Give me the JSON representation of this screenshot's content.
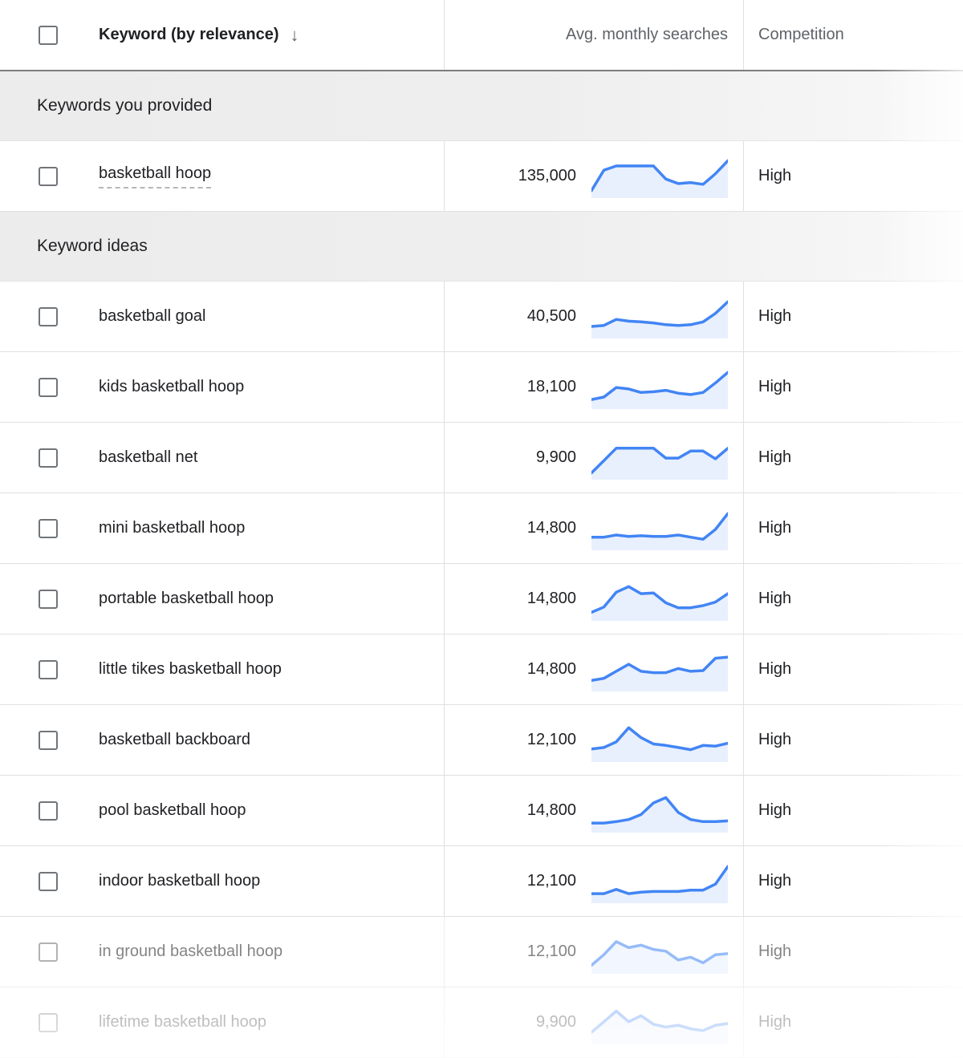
{
  "colors": {
    "sparkline_line": "#4285f4",
    "sparkline_fill": "#e8f0fe"
  },
  "table": {
    "header": {
      "keyword": "Keyword (by relevance)",
      "sort_icon_glyph": "↓",
      "searches": "Avg. monthly searches",
      "competition": "Competition"
    },
    "sections": [
      {
        "label": "Keywords you provided",
        "rows": [
          {
            "keyword": "basketball hoop",
            "searches": "135,000",
            "competition": "High",
            "dashed": true,
            "opacity": 1,
            "trend": [
              0.12,
              0.7,
              0.82,
              0.82,
              0.82,
              0.82,
              0.45,
              0.32,
              0.35,
              0.3,
              0.6,
              0.97
            ]
          }
        ]
      },
      {
        "label": "Keyword ideas",
        "rows": [
          {
            "keyword": "basketball goal",
            "searches": "40,500",
            "competition": "High",
            "opacity": 1,
            "trend": [
              0.25,
              0.28,
              0.45,
              0.4,
              0.38,
              0.35,
              0.3,
              0.28,
              0.3,
              0.38,
              0.62,
              0.95
            ]
          },
          {
            "keyword": "kids basketball hoop",
            "searches": "18,100",
            "competition": "High",
            "opacity": 1,
            "trend": [
              0.18,
              0.25,
              0.52,
              0.48,
              0.38,
              0.4,
              0.44,
              0.36,
              0.32,
              0.38,
              0.65,
              0.95
            ]
          },
          {
            "keyword": "basketball net",
            "searches": "9,900",
            "competition": "High",
            "opacity": 1,
            "trend": [
              0.1,
              0.45,
              0.8,
              0.8,
              0.8,
              0.8,
              0.52,
              0.52,
              0.72,
              0.72,
              0.5,
              0.8
            ]
          },
          {
            "keyword": "mini basketball hoop",
            "searches": "14,800",
            "competition": "High",
            "opacity": 1,
            "trend": [
              0.28,
              0.28,
              0.34,
              0.3,
              0.32,
              0.3,
              0.3,
              0.34,
              0.28,
              0.22,
              0.5,
              0.95
            ]
          },
          {
            "keyword": "portable basketball hoop",
            "searches": "14,800",
            "competition": "High",
            "opacity": 1,
            "trend": [
              0.15,
              0.3,
              0.72,
              0.88,
              0.68,
              0.7,
              0.42,
              0.28,
              0.28,
              0.34,
              0.44,
              0.68
            ]
          },
          {
            "keyword": "little tikes basketball hoop",
            "searches": "14,800",
            "competition": "High",
            "opacity": 1,
            "trend": [
              0.22,
              0.28,
              0.48,
              0.68,
              0.48,
              0.44,
              0.44,
              0.56,
              0.48,
              0.5,
              0.85,
              0.88
            ]
          },
          {
            "keyword": "basketball backboard",
            "searches": "12,100",
            "competition": "High",
            "opacity": 1,
            "trend": [
              0.28,
              0.32,
              0.48,
              0.88,
              0.6,
              0.42,
              0.38,
              0.32,
              0.26,
              0.38,
              0.36,
              0.44
            ]
          },
          {
            "keyword": "pool basketball hoop",
            "searches": "14,800",
            "competition": "High",
            "opacity": 1,
            "trend": [
              0.18,
              0.18,
              0.22,
              0.28,
              0.42,
              0.75,
              0.9,
              0.48,
              0.28,
              0.22,
              0.22,
              0.24
            ]
          },
          {
            "keyword": "indoor basketball hoop",
            "searches": "12,100",
            "competition": "High",
            "opacity": 1,
            "trend": [
              0.18,
              0.18,
              0.3,
              0.18,
              0.22,
              0.24,
              0.24,
              0.24,
              0.28,
              0.28,
              0.45,
              0.95
            ]
          },
          {
            "keyword": "in ground basketball hoop",
            "searches": "12,100",
            "competition": "High",
            "opacity": 0.55,
            "trend": [
              0.15,
              0.45,
              0.82,
              0.65,
              0.72,
              0.6,
              0.55,
              0.3,
              0.38,
              0.22,
              0.45,
              0.48
            ]
          },
          {
            "keyword": "lifetime basketball hoop",
            "searches": "9,900",
            "competition": "High",
            "opacity": 0.38,
            "trend": [
              0.25,
              0.55,
              0.85,
              0.55,
              0.72,
              0.48,
              0.4,
              0.45,
              0.35,
              0.3,
              0.45,
              0.5
            ]
          }
        ]
      }
    ]
  }
}
